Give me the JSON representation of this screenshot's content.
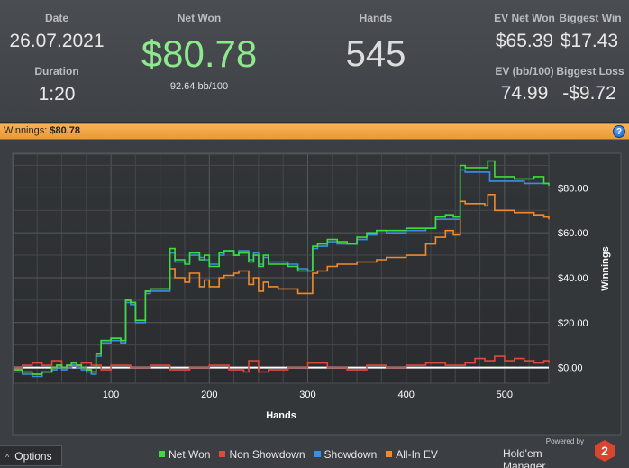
{
  "stats": {
    "date_label": "Date",
    "date_value": "26.07.2021",
    "duration_label": "Duration",
    "duration_value": "1:20",
    "net_won_label": "Net Won",
    "net_won_value": "$80.78",
    "net_won_sub": "92.64 bb/100",
    "hands_label": "Hands",
    "hands_value": "545",
    "ev_net_won_label": "EV Net Won",
    "ev_net_won_value": "$65.39",
    "biggest_win_label": "Biggest Win",
    "biggest_win_value": "$17.43",
    "ev_bb_label": "EV (bb/100)",
    "ev_bb_value": "74.99",
    "biggest_loss_label": "Biggest Loss",
    "biggest_loss_value": "-$9.72"
  },
  "winbar": {
    "label": "Winnings:",
    "value": "$80.78",
    "help_glyph": "?"
  },
  "footer": {
    "options_label": "Options",
    "options_caret": "^",
    "powered_by": "Powered by",
    "brand_name": "Hold'em Manager",
    "brand_logo_text": "2"
  },
  "colors": {
    "net_won": "#3ddc3d",
    "non_showdown": "#e04a3c",
    "showdown": "#3a8ee8",
    "all_in_ev": "#f08a2c",
    "accent_green": "#8ee88e",
    "zero_line": "#ffffff"
  },
  "chart_data": {
    "type": "line",
    "xlabel": "Hands",
    "ylabel": "Winnings",
    "xlim": [
      1,
      545
    ],
    "ylim": [
      -7,
      95
    ],
    "x_ticks": [
      100,
      200,
      300,
      400,
      500
    ],
    "y_ticks": [
      0,
      20,
      40,
      60,
      80
    ],
    "y_tick_labels": [
      "$0.00",
      "$20.00",
      "$40.00",
      "$60.00",
      "$80.00"
    ],
    "grid": true,
    "legend_position": "bottom",
    "series": [
      {
        "name": "Net Won",
        "color_key": "net_won",
        "x": [
          1,
          10,
          20,
          30,
          40,
          45,
          50,
          55,
          60,
          65,
          70,
          75,
          80,
          85,
          90,
          100,
          110,
          115,
          120,
          125,
          130,
          135,
          140,
          150,
          160,
          165,
          175,
          180,
          190,
          195,
          200,
          210,
          215,
          225,
          230,
          240,
          245,
          250,
          255,
          260,
          270,
          280,
          290,
          300,
          305,
          310,
          320,
          330,
          340,
          350,
          360,
          370,
          380,
          390,
          400,
          410,
          420,
          430,
          440,
          448,
          455,
          460,
          470,
          480,
          483,
          490,
          500,
          510,
          520,
          530,
          540,
          545
        ],
        "y": [
          -1,
          -2,
          -3,
          -2,
          0,
          1,
          0,
          1,
          2,
          1,
          0,
          -1,
          -2,
          6,
          12,
          13,
          12,
          30,
          29,
          21,
          21,
          34,
          35,
          35,
          53,
          48,
          46,
          51,
          48,
          50,
          45,
          51,
          52,
          50,
          51,
          47,
          50,
          45,
          50,
          46,
          46,
          45,
          43,
          43,
          54,
          55,
          57,
          56,
          55,
          58,
          60,
          61,
          61,
          61,
          62,
          62,
          62,
          67,
          68,
          67,
          90,
          89,
          89,
          89,
          92,
          85,
          85,
          84,
          84,
          85,
          82,
          81
        ]
      },
      {
        "name": "Non Showdown",
        "color_key": "non_showdown",
        "x": [
          1,
          10,
          20,
          30,
          40,
          50,
          60,
          70,
          80,
          90,
          100,
          120,
          140,
          160,
          180,
          200,
          220,
          235,
          240,
          245,
          250,
          260,
          280,
          300,
          320,
          340,
          360,
          380,
          400,
          420,
          440,
          460,
          470,
          480,
          490,
          500,
          510,
          520,
          530,
          540,
          545
        ],
        "y": [
          0,
          1,
          2,
          1,
          3,
          0,
          1,
          2,
          1,
          -1,
          1,
          0,
          1,
          -1,
          0,
          1,
          -1,
          -2,
          3,
          3,
          -2,
          -1,
          0,
          2,
          0,
          -1,
          1,
          0,
          1,
          2,
          1,
          2,
          4,
          3,
          5,
          3,
          4,
          3,
          2,
          3,
          2
        ]
      },
      {
        "name": "Showdown",
        "color_key": "showdown",
        "x": [
          1,
          10,
          20,
          30,
          40,
          45,
          50,
          55,
          60,
          65,
          70,
          75,
          80,
          85,
          90,
          100,
          110,
          115,
          120,
          125,
          130,
          135,
          140,
          150,
          160,
          165,
          175,
          180,
          190,
          195,
          200,
          210,
          215,
          225,
          230,
          240,
          245,
          250,
          255,
          260,
          270,
          280,
          290,
          300,
          305,
          310,
          320,
          330,
          340,
          350,
          360,
          370,
          380,
          390,
          400,
          410,
          420,
          430,
          440,
          448,
          455,
          460,
          470,
          480,
          485,
          490,
          500,
          510,
          520,
          530,
          540,
          545
        ],
        "y": [
          -2,
          -3,
          -4,
          -2,
          -1,
          0,
          -1,
          0,
          1,
          0,
          -1,
          -2,
          -3,
          5,
          11,
          12,
          11,
          29,
          28,
          20,
          20,
          33,
          34,
          34,
          51,
          47,
          47,
          50,
          49,
          48,
          46,
          50,
          52,
          50,
          52,
          48,
          51,
          46,
          49,
          47,
          47,
          46,
          44,
          43,
          53,
          54,
          56,
          55,
          55,
          57,
          59,
          61,
          60,
          60,
          61,
          61,
          62,
          66,
          66,
          66,
          88,
          87,
          87,
          87,
          83,
          83,
          83,
          83,
          82,
          82,
          82,
          82
        ]
      },
      {
        "name": "All-In EV",
        "color_key": "all_in_ev",
        "x": [
          1,
          10,
          20,
          30,
          40,
          45,
          50,
          55,
          60,
          65,
          70,
          75,
          80,
          85,
          90,
          100,
          110,
          115,
          120,
          125,
          130,
          135,
          140,
          150,
          160,
          165,
          175,
          180,
          190,
          195,
          200,
          210,
          215,
          225,
          230,
          240,
          245,
          250,
          255,
          260,
          270,
          280,
          290,
          300,
          305,
          310,
          320,
          330,
          340,
          350,
          360,
          370,
          380,
          390,
          400,
          410,
          420,
          430,
          440,
          448,
          455,
          460,
          470,
          475,
          480,
          483,
          490,
          500,
          510,
          520,
          530,
          540,
          545
        ],
        "y": [
          -1,
          -2,
          -3,
          -2,
          0,
          1,
          0,
          1,
          2,
          1,
          0,
          -1,
          -2,
          6,
          12,
          13,
          12,
          30,
          29,
          21,
          21,
          34,
          35,
          35,
          44,
          40,
          38,
          42,
          36,
          39,
          36,
          40,
          41,
          42,
          43,
          37,
          40,
          34,
          38,
          36,
          35,
          35,
          33,
          33,
          42,
          43,
          45,
          46,
          46,
          47,
          47,
          48,
          49,
          49,
          50,
          50,
          55,
          58,
          61,
          59,
          74,
          73,
          73,
          73,
          72,
          77,
          70,
          70,
          69,
          69,
          68,
          67,
          66
        ]
      }
    ]
  }
}
